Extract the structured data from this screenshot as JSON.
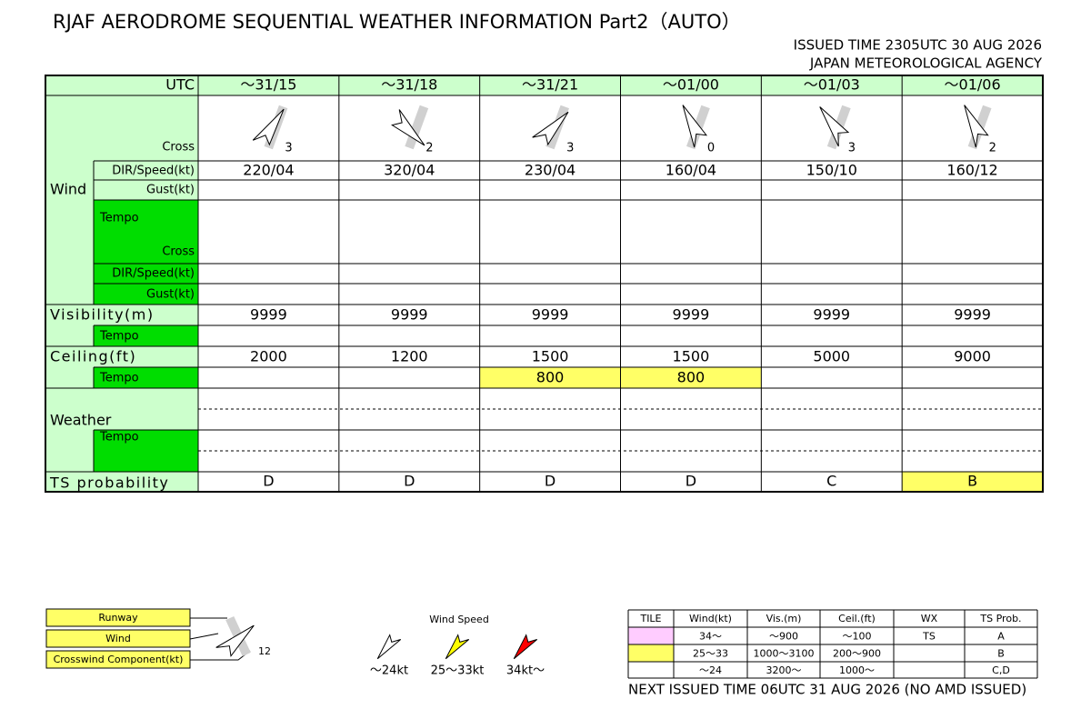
{
  "title": "RJAF AERODROME SEQUENTIAL WEATHER INFORMATION Part2（AUTO）",
  "issued": "ISSUED TIME 2305UTC 30 AUG 2026",
  "agency": "JAPAN METEOROLOGICAL AGENCY",
  "table": {
    "utc_label": "UTC",
    "columns": [
      "～31/15",
      "～31/18",
      "～31/21",
      "～01/00",
      "～01/03",
      "～01/06"
    ],
    "wind": {
      "label": "Wind",
      "cross_label": "Cross",
      "crosswind": [
        3,
        2,
        3,
        0,
        3,
        2
      ],
      "dir_label": "DIR/Speed(kt)",
      "dir_speed": [
        "220/04",
        "320/04",
        "230/04",
        "160/04",
        "150/10",
        "160/12"
      ],
      "gust_label": "Gust(kt)",
      "tempo_label": "Tempo",
      "tempo_cross_label": "Cross",
      "tempo_dir_label": "DIR/Speed(kt)",
      "tempo_gust_label": "Gust(kt)",
      "arrow_color": "#ffffff"
    },
    "visibility": {
      "label": "Visibility(m)",
      "values": [
        9999,
        9999,
        9999,
        9999,
        9999,
        9999
      ],
      "tempo_label": "Tempo"
    },
    "ceiling": {
      "label": "Ceiling(ft)",
      "values": [
        2000,
        1200,
        1500,
        1500,
        5000,
        9000
      ],
      "tempo_label": "Tempo",
      "tempo_values": [
        null,
        null,
        800,
        800,
        null,
        null
      ],
      "tempo_colors": [
        null,
        null,
        "#ffff66",
        "#ffff66",
        null,
        null
      ]
    },
    "weather": {
      "label": "Weather",
      "tempo_label": "Tempo"
    },
    "ts": {
      "label": "TS probability",
      "values": [
        "D",
        "D",
        "D",
        "D",
        "C",
        "B"
      ],
      "colors": [
        null,
        null,
        null,
        null,
        null,
        "#ffff66"
      ]
    }
  },
  "legend": {
    "runway": "Runway",
    "wind": "Wind",
    "crosswind": "Crosswind Component(kt)",
    "sample_cross": 12,
    "speed_title": "Wind Speed",
    "speeds": [
      {
        "label": "～24kt",
        "color": "#ffffff"
      },
      {
        "label": "25～33kt",
        "color": "#ffff00"
      },
      {
        "label": "34kt～",
        "color": "#ff0000"
      }
    ],
    "headers": [
      "TILE",
      "Wind(kt)",
      "Vis.(m)",
      "Ceil.(ft)",
      "WX",
      "TS Prob."
    ],
    "rows": [
      {
        "color": "#ffccff",
        "cells": [
          "34～",
          "～900",
          "～100",
          "TS",
          "A"
        ]
      },
      {
        "color": "#ffff66",
        "cells": [
          "25～33",
          "1000～3100",
          "200～900",
          null,
          "B"
        ]
      },
      {
        "color": "#ffffff",
        "cells": [
          "～24",
          "3200～",
          "1000～",
          null,
          "C,D"
        ]
      }
    ]
  },
  "next_issued": "NEXT ISSUED TIME 06UTC 31 AUG 2026 (NO AMD ISSUED)"
}
